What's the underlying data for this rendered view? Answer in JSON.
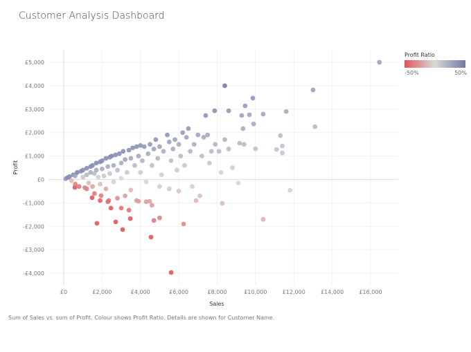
{
  "title": "Customer Analysis Dashboard",
  "caption": "Sum of Sales vs. sum of Profit. Colour shows Profit Ratio. Details are shown for Customer Name.",
  "legend": {
    "title": "Profit Ratio",
    "min_label": "-50%",
    "max_label": "50%",
    "colors": {
      "low": "#e15759",
      "mid": "#d9d9d9",
      "high": "#7179a8"
    }
  },
  "chart_data": {
    "type": "scatter",
    "xlabel": "Sales",
    "ylabel": "Profit",
    "xlim": [
      -1000,
      17500
    ],
    "ylim": [
      -4600,
      5500
    ],
    "xticks": [
      0,
      2000,
      4000,
      6000,
      8000,
      10000,
      12000,
      14000,
      16000
    ],
    "xtick_labels": [
      "£0",
      "£2,000",
      "£4,000",
      "£6,000",
      "£8,000",
      "£10,000",
      "£12,000",
      "£14,000",
      "£16,000"
    ],
    "yticks": [
      5000,
      4000,
      3000,
      2000,
      1000,
      0,
      -1000,
      -2000,
      -3000,
      -4000
    ],
    "ytick_labels": [
      "£5,000",
      "£4,000",
      "£3,000",
      "£2,000",
      "£1,000",
      "£0",
      "-£1,000",
      "-£2,000",
      "-£3,000",
      "-£4,000"
    ],
    "grid": true,
    "color_encoding": "Profit Ratio",
    "color_range": [
      -0.5,
      0.5
    ],
    "points": [
      [
        16460,
        5000
      ],
      [
        13000,
        3820
      ],
      [
        13100,
        2250
      ],
      [
        8400,
        4000
      ],
      [
        11600,
        2900
      ],
      [
        9860,
        3470
      ],
      [
        9460,
        3140
      ],
      [
        8600,
        2930
      ],
      [
        7870,
        2930
      ],
      [
        10400,
        2790
      ],
      [
        9680,
        2760
      ],
      [
        9280,
        2730
      ],
      [
        7400,
        2730
      ],
      [
        6500,
        2170
      ],
      [
        9350,
        2170
      ],
      [
        9900,
        2370
      ],
      [
        11300,
        1870
      ],
      [
        11400,
        1430
      ],
      [
        11100,
        1280
      ],
      [
        11400,
        1130
      ],
      [
        10000,
        1310
      ],
      [
        9170,
        1550
      ],
      [
        11800,
        -460
      ],
      [
        10400,
        -1700
      ],
      [
        8270,
        -1020
      ],
      [
        5600,
        -3970
      ],
      [
        4550,
        -2460
      ],
      [
        1730,
        -1870
      ],
      [
        3070,
        -2140
      ],
      [
        2710,
        -1810
      ],
      [
        4700,
        -1750
      ],
      [
        5000,
        -1640
      ],
      [
        6250,
        -1900
      ],
      [
        3470,
        -1670
      ],
      [
        3400,
        -1310
      ],
      [
        3000,
        -1220
      ],
      [
        2460,
        -1220
      ],
      [
        1480,
        -780
      ],
      [
        1900,
        -900
      ],
      [
        1950,
        -690
      ],
      [
        2350,
        -900
      ],
      [
        4480,
        -930
      ],
      [
        3900,
        -930
      ],
      [
        4600,
        -1100
      ],
      [
        580,
        -340
      ],
      [
        100,
        30
      ],
      [
        200,
        80
      ],
      [
        300,
        120
      ],
      [
        400,
        -50
      ],
      [
        500,
        200
      ],
      [
        600,
        150
      ],
      [
        700,
        300
      ],
      [
        800,
        -300
      ],
      [
        900,
        350
      ],
      [
        1000,
        400
      ],
      [
        1000,
        100
      ],
      [
        1100,
        -350
      ],
      [
        1200,
        480
      ],
      [
        1200,
        200
      ],
      [
        1300,
        -150
      ],
      [
        1400,
        550
      ],
      [
        1400,
        300
      ],
      [
        1500,
        600
      ],
      [
        1500,
        -300
      ],
      [
        1600,
        250
      ],
      [
        1700,
        700
      ],
      [
        1700,
        400
      ],
      [
        1800,
        100
      ],
      [
        1900,
        750
      ],
      [
        1900,
        -200
      ],
      [
        2000,
        800
      ],
      [
        2000,
        450
      ],
      [
        2100,
        150
      ],
      [
        2200,
        900
      ],
      [
        2200,
        -400
      ],
      [
        2300,
        550
      ],
      [
        2400,
        950
      ],
      [
        2400,
        250
      ],
      [
        2500,
        1000
      ],
      [
        2600,
        600
      ],
      [
        2600,
        -100
      ],
      [
        2700,
        1050
      ],
      [
        2800,
        400
      ],
      [
        2900,
        1100
      ],
      [
        3000,
        700
      ],
      [
        3000,
        50
      ],
      [
        3100,
        1200
      ],
      [
        3200,
        850
      ],
      [
        3300,
        300
      ],
      [
        3400,
        1250
      ],
      [
        3500,
        900
      ],
      [
        3500,
        -450
      ],
      [
        3600,
        1350
      ],
      [
        3700,
        600
      ],
      [
        3800,
        1400
      ],
      [
        3900,
        1000
      ],
      [
        4000,
        1450
      ],
      [
        4000,
        300
      ],
      [
        4100,
        800
      ],
      [
        4200,
        1400
      ],
      [
        4300,
        -100
      ],
      [
        4400,
        1100
      ],
      [
        4500,
        1500
      ],
      [
        4600,
        600
      ],
      [
        4700,
        1300
      ],
      [
        4800,
        1700
      ],
      [
        4900,
        900
      ],
      [
        5000,
        1400
      ],
      [
        5100,
        200
      ],
      [
        5200,
        1200
      ],
      [
        5400,
        1900
      ],
      [
        5500,
        1600
      ],
      [
        5600,
        800
      ],
      [
        5700,
        1300
      ],
      [
        5800,
        1700
      ],
      [
        5900,
        400
      ],
      [
        6000,
        1500
      ],
      [
        6100,
        1000
      ],
      [
        6200,
        2000
      ],
      [
        6300,
        600
      ],
      [
        6400,
        1800
      ],
      [
        6600,
        1200
      ],
      [
        6700,
        -300
      ],
      [
        6800,
        1500
      ],
      [
        6900,
        -900
      ],
      [
        7000,
        1900
      ],
      [
        7100,
        -700
      ],
      [
        7200,
        1000
      ],
      [
        7300,
        1800
      ],
      [
        7500,
        1900
      ],
      [
        7600,
        700
      ],
      [
        7700,
        1200
      ],
      [
        7900,
        1500
      ],
      [
        8100,
        1200
      ],
      [
        8200,
        300
      ],
      [
        8400,
        1700
      ],
      [
        8600,
        1300
      ],
      [
        8800,
        500
      ],
      [
        9100,
        -150
      ],
      [
        9400,
        1500
      ],
      [
        2800,
        -800
      ],
      [
        3200,
        -700
      ],
      [
        3800,
        -900
      ],
      [
        4300,
        -950
      ],
      [
        2300,
        -950
      ],
      [
        1600,
        -600
      ],
      [
        1200,
        -400
      ],
      [
        600,
        -200
      ],
      [
        5000,
        -300
      ],
      [
        5500,
        -400
      ],
      [
        6000,
        -500
      ]
    ]
  }
}
